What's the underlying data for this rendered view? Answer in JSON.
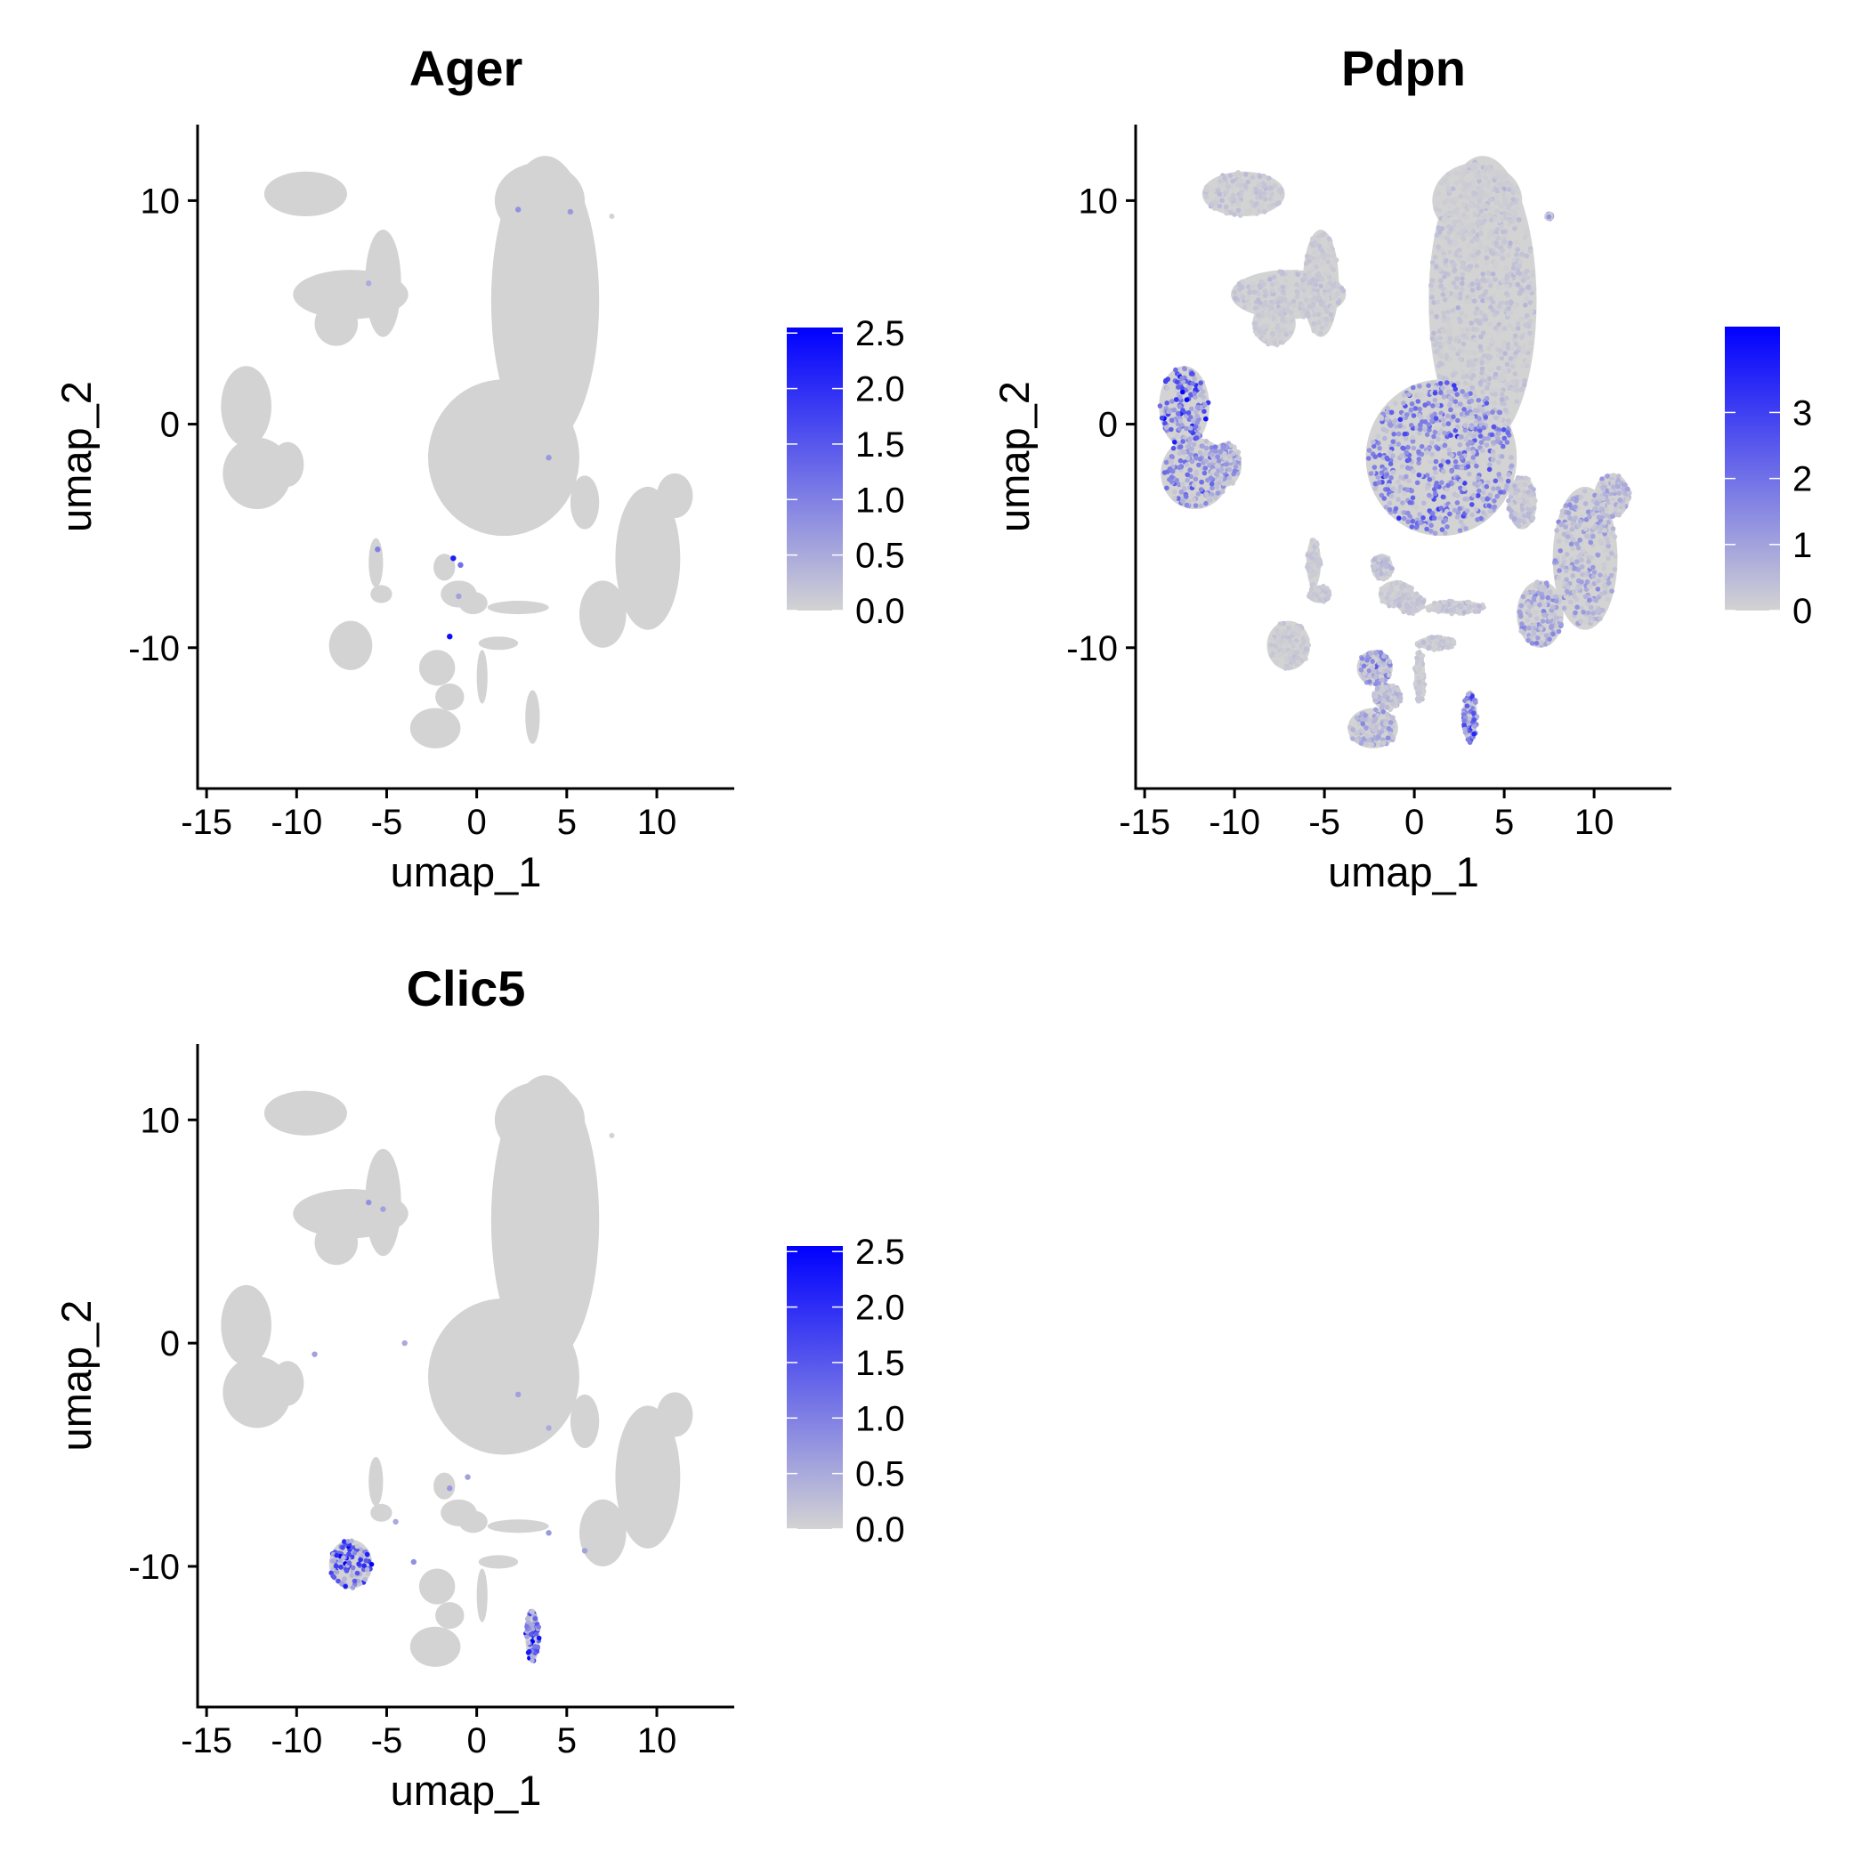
{
  "chart_data": [
    {
      "type": "scatter",
      "title": "Ager",
      "xlabel": "umap_1",
      "ylabel": "umap_2",
      "xlim": [
        -15.5,
        14.3
      ],
      "ylim": [
        -16.3,
        13.4
      ],
      "xticks": [
        -15,
        -10,
        -5,
        0,
        5,
        10
      ],
      "xtick_labels": [
        "-15",
        "-10",
        "-5",
        "0",
        "5",
        "10"
      ],
      "yticks": [
        -10,
        0,
        10
      ],
      "ytick_labels": [
        "-10",
        "0",
        "10"
      ],
      "color_scale": {
        "low": "#d3d3d3",
        "high": "#0000ff",
        "min": 0,
        "max": 2.55
      },
      "legend_ticks": [
        0,
        0.5,
        1,
        1.5,
        2,
        2.5
      ],
      "legend_tick_labels": [
        "0.0",
        "0.5",
        "1.0",
        "1.5",
        "2.0",
        "2.5"
      ],
      "legend_position": "right",
      "grid": false,
      "clusters": [
        {
          "x": 3.8,
          "y": 5.5,
          "rx": 3.0,
          "ry": 6.5
        },
        {
          "x": 1.5,
          "y": -1.5,
          "rx": 4.2,
          "ry": 3.5
        },
        {
          "x": 3.5,
          "y": 10.0,
          "rx": 2.5,
          "ry": 1.7
        },
        {
          "x": 6.0,
          "y": -3.5,
          "rx": 0.8,
          "ry": 1.2
        },
        {
          "x": -9.5,
          "y": 10.3,
          "rx": 2.3,
          "ry": 1.0
        },
        {
          "x": -7.0,
          "y": 5.8,
          "rx": 3.2,
          "ry": 1.1
        },
        {
          "x": -5.2,
          "y": 6.3,
          "rx": 1.0,
          "ry": 2.4
        },
        {
          "x": -7.8,
          "y": 4.5,
          "rx": 1.2,
          "ry": 1.0
        },
        {
          "x": -12.8,
          "y": 0.8,
          "rx": 1.4,
          "ry": 1.8
        },
        {
          "x": -12.2,
          "y": -2.2,
          "rx": 1.9,
          "ry": 1.6
        },
        {
          "x": -10.5,
          "y": -1.8,
          "rx": 0.9,
          "ry": 1.0
        },
        {
          "x": 9.5,
          "y": -6.0,
          "rx": 1.8,
          "ry": 3.2
        },
        {
          "x": 11.0,
          "y": -3.2,
          "rx": 1.0,
          "ry": 1.0
        },
        {
          "x": 7.0,
          "y": -8.5,
          "rx": 1.3,
          "ry": 1.5
        },
        {
          "x": -5.6,
          "y": -6.2,
          "rx": 0.4,
          "ry": 1.1
        },
        {
          "x": -5.3,
          "y": -7.6,
          "rx": 0.6,
          "ry": 0.4
        },
        {
          "x": -7.0,
          "y": -9.9,
          "rx": 1.2,
          "ry": 1.1
        },
        {
          "x": -1.0,
          "y": -7.6,
          "rx": 1.0,
          "ry": 0.6
        },
        {
          "x": -1.8,
          "y": -6.4,
          "rx": 0.6,
          "ry": 0.6
        },
        {
          "x": -0.2,
          "y": -8.0,
          "rx": 0.8,
          "ry": 0.5
        },
        {
          "x": -2.2,
          "y": -10.9,
          "rx": 1.0,
          "ry": 0.8
        },
        {
          "x": -1.5,
          "y": -12.2,
          "rx": 0.8,
          "ry": 0.6
        },
        {
          "x": -2.3,
          "y": -13.6,
          "rx": 1.4,
          "ry": 0.9
        },
        {
          "x": 2.3,
          "y": -8.2,
          "rx": 1.7,
          "ry": 0.3
        },
        {
          "x": 1.2,
          "y": -9.8,
          "rx": 1.1,
          "ry": 0.3
        },
        {
          "x": 0.3,
          "y": -11.3,
          "rx": 0.3,
          "ry": 1.2
        },
        {
          "x": 3.1,
          "y": -13.1,
          "rx": 0.4,
          "ry": 1.2
        },
        {
          "x": 7.5,
          "y": 9.3,
          "rx": 0.15,
          "ry": 0.12
        }
      ],
      "positive_cells": [
        {
          "x": 2.3,
          "y": 9.6,
          "v": 0.8
        },
        {
          "x": 5.2,
          "y": 9.5,
          "v": 0.7
        },
        {
          "x": 4.0,
          "y": -1.5,
          "v": 0.7
        },
        {
          "x": -1.3,
          "y": -6.0,
          "v": 2.2
        },
        {
          "x": -0.9,
          "y": -6.3,
          "v": 1.2
        },
        {
          "x": -1.5,
          "y": -9.5,
          "v": 2.4
        },
        {
          "x": -5.5,
          "y": -5.6,
          "v": 1.0
        },
        {
          "x": -1.0,
          "y": -7.7,
          "v": 0.6
        },
        {
          "x": -6.0,
          "y": 6.3,
          "v": 0.5
        }
      ]
    },
    {
      "type": "scatter",
      "title": "Pdpn",
      "xlabel": "umap_1",
      "ylabel": "umap_2",
      "xlim": [
        -15.5,
        14.3
      ],
      "ylim": [
        -16.3,
        13.4
      ],
      "xticks": [
        -15,
        -10,
        -5,
        0,
        5,
        10
      ],
      "xtick_labels": [
        "-15",
        "-10",
        "-5",
        "0",
        "5",
        "10"
      ],
      "yticks": [
        -10,
        0,
        10
      ],
      "ytick_labels": [
        "-10",
        "0",
        "10"
      ],
      "color_scale": {
        "low": "#d3d3d3",
        "high": "#0000ff",
        "min": 0,
        "max": 4.3
      },
      "legend_ticks": [
        0,
        1,
        2,
        3
      ],
      "legend_tick_labels": [
        "0",
        "1",
        "2",
        "3"
      ],
      "legend_position": "right",
      "grid": false,
      "clusters": [
        {
          "x": 3.8,
          "y": 5.5,
          "rx": 3.0,
          "ry": 6.5,
          "expr": 0.3
        },
        {
          "x": 1.5,
          "y": -1.5,
          "rx": 4.2,
          "ry": 3.5,
          "expr": 1.6
        },
        {
          "x": 3.5,
          "y": 10.0,
          "rx": 2.5,
          "ry": 1.7,
          "expr": 0.1
        },
        {
          "x": 6.0,
          "y": -3.5,
          "rx": 0.8,
          "ry": 1.2,
          "expr": 0.4
        },
        {
          "x": -9.5,
          "y": 10.3,
          "rx": 2.3,
          "ry": 1.0,
          "expr": 0.3
        },
        {
          "x": -7.0,
          "y": 5.8,
          "rx": 3.2,
          "ry": 1.1,
          "expr": 0.3
        },
        {
          "x": -5.2,
          "y": 6.3,
          "rx": 1.0,
          "ry": 2.4,
          "expr": 0.2
        },
        {
          "x": -7.8,
          "y": 4.5,
          "rx": 1.2,
          "ry": 1.0,
          "expr": 0.2
        },
        {
          "x": -12.8,
          "y": 0.8,
          "rx": 1.4,
          "ry": 1.8,
          "expr": 2.2
        },
        {
          "x": -12.2,
          "y": -2.2,
          "rx": 1.9,
          "ry": 1.6,
          "expr": 1.3
        },
        {
          "x": -10.5,
          "y": -1.8,
          "rx": 0.9,
          "ry": 1.0,
          "expr": 1.0
        },
        {
          "x": 9.5,
          "y": -6.0,
          "rx": 1.8,
          "ry": 3.2,
          "expr": 0.8
        },
        {
          "x": 11.0,
          "y": -3.2,
          "rx": 1.0,
          "ry": 1.0,
          "expr": 0.6
        },
        {
          "x": 7.0,
          "y": -8.5,
          "rx": 1.3,
          "ry": 1.5,
          "expr": 1.0
        },
        {
          "x": -5.6,
          "y": -6.2,
          "rx": 0.4,
          "ry": 1.1,
          "expr": 0.2
        },
        {
          "x": -5.3,
          "y": -7.6,
          "rx": 0.6,
          "ry": 0.4,
          "expr": 0.2
        },
        {
          "x": -7.0,
          "y": -9.9,
          "rx": 1.2,
          "ry": 1.1,
          "expr": 0.2
        },
        {
          "x": -1.0,
          "y": -7.6,
          "rx": 1.0,
          "ry": 0.6,
          "expr": 0.2
        },
        {
          "x": -1.8,
          "y": -6.4,
          "rx": 0.6,
          "ry": 0.6,
          "expr": 0.4
        },
        {
          "x": -0.2,
          "y": -8.0,
          "rx": 0.8,
          "ry": 0.5,
          "expr": 0.3
        },
        {
          "x": -2.2,
          "y": -10.9,
          "rx": 1.0,
          "ry": 0.8,
          "expr": 1.2
        },
        {
          "x": -1.5,
          "y": -12.2,
          "rx": 0.8,
          "ry": 0.6,
          "expr": 0.6
        },
        {
          "x": -2.3,
          "y": -13.6,
          "rx": 1.4,
          "ry": 0.9,
          "expr": 0.7
        },
        {
          "x": 2.3,
          "y": -8.2,
          "rx": 1.7,
          "ry": 0.3,
          "expr": 0.3
        },
        {
          "x": 1.2,
          "y": -9.8,
          "rx": 1.1,
          "ry": 0.3,
          "expr": 0.3
        },
        {
          "x": 0.3,
          "y": -11.3,
          "rx": 0.3,
          "ry": 1.2,
          "expr": 0.2
        },
        {
          "x": 3.1,
          "y": -13.1,
          "rx": 0.4,
          "ry": 1.2,
          "expr": 1.8
        },
        {
          "x": 7.5,
          "y": 9.3,
          "rx": 0.15,
          "ry": 0.12,
          "expr": 1.0
        }
      ]
    },
    {
      "type": "scatter",
      "title": "Clic5",
      "xlabel": "umap_1",
      "ylabel": "umap_2",
      "xlim": [
        -15.5,
        14.3
      ],
      "ylim": [
        -16.3,
        13.4
      ],
      "xticks": [
        -15,
        -10,
        -5,
        0,
        5,
        10
      ],
      "xtick_labels": [
        "-15",
        "-10",
        "-5",
        "0",
        "5",
        "10"
      ],
      "yticks": [
        -10,
        0,
        10
      ],
      "ytick_labels": [
        "-10",
        "0",
        "10"
      ],
      "color_scale": {
        "low": "#d3d3d3",
        "high": "#0000ff",
        "min": 0,
        "max": 2.55
      },
      "legend_ticks": [
        0,
        0.5,
        1,
        1.5,
        2,
        2.5
      ],
      "legend_tick_labels": [
        "0.0",
        "0.5",
        "1.0",
        "1.5",
        "2.0",
        "2.5"
      ],
      "legend_position": "right",
      "grid": false,
      "clusters": [
        {
          "x": 3.8,
          "y": 5.5,
          "rx": 3.0,
          "ry": 6.5
        },
        {
          "x": 1.5,
          "y": -1.5,
          "rx": 4.2,
          "ry": 3.5
        },
        {
          "x": 3.5,
          "y": 10.0,
          "rx": 2.5,
          "ry": 1.7
        },
        {
          "x": 6.0,
          "y": -3.5,
          "rx": 0.8,
          "ry": 1.2
        },
        {
          "x": -9.5,
          "y": 10.3,
          "rx": 2.3,
          "ry": 1.0
        },
        {
          "x": -7.0,
          "y": 5.8,
          "rx": 3.2,
          "ry": 1.1
        },
        {
          "x": -5.2,
          "y": 6.3,
          "rx": 1.0,
          "ry": 2.4
        },
        {
          "x": -7.8,
          "y": 4.5,
          "rx": 1.2,
          "ry": 1.0
        },
        {
          "x": -12.8,
          "y": 0.8,
          "rx": 1.4,
          "ry": 1.8
        },
        {
          "x": -12.2,
          "y": -2.2,
          "rx": 1.9,
          "ry": 1.6
        },
        {
          "x": -10.5,
          "y": -1.8,
          "rx": 0.9,
          "ry": 1.0
        },
        {
          "x": 9.5,
          "y": -6.0,
          "rx": 1.8,
          "ry": 3.2
        },
        {
          "x": 11.0,
          "y": -3.2,
          "rx": 1.0,
          "ry": 1.0
        },
        {
          "x": 7.0,
          "y": -8.5,
          "rx": 1.3,
          "ry": 1.5
        },
        {
          "x": -5.6,
          "y": -6.2,
          "rx": 0.4,
          "ry": 1.1
        },
        {
          "x": -5.3,
          "y": -7.6,
          "rx": 0.6,
          "ry": 0.4
        },
        {
          "x": -7.0,
          "y": -9.9,
          "rx": 1.2,
          "ry": 1.1
        },
        {
          "x": -1.0,
          "y": -7.6,
          "rx": 1.0,
          "ry": 0.6
        },
        {
          "x": -1.8,
          "y": -6.4,
          "rx": 0.6,
          "ry": 0.6
        },
        {
          "x": -0.2,
          "y": -8.0,
          "rx": 0.8,
          "ry": 0.5
        },
        {
          "x": -2.2,
          "y": -10.9,
          "rx": 1.0,
          "ry": 0.8
        },
        {
          "x": -1.5,
          "y": -12.2,
          "rx": 0.8,
          "ry": 0.6
        },
        {
          "x": -2.3,
          "y": -13.6,
          "rx": 1.4,
          "ry": 0.9
        },
        {
          "x": 2.3,
          "y": -8.2,
          "rx": 1.7,
          "ry": 0.3
        },
        {
          "x": 1.2,
          "y": -9.8,
          "rx": 1.1,
          "ry": 0.3
        },
        {
          "x": 0.3,
          "y": -11.3,
          "rx": 0.3,
          "ry": 1.2
        },
        {
          "x": 3.1,
          "y": -13.1,
          "rx": 0.4,
          "ry": 1.2
        },
        {
          "x": 7.5,
          "y": 9.3,
          "rx": 0.15,
          "ry": 0.12
        }
      ],
      "expressing_clusters": [
        {
          "x": -7.0,
          "y": -9.9,
          "rx": 1.2,
          "ry": 1.1,
          "expr": 1.4
        },
        {
          "x": 3.1,
          "y": -13.1,
          "rx": 0.4,
          "ry": 1.2,
          "expr": 1.5
        }
      ],
      "positive_cells": [
        {
          "x": -6.0,
          "y": 6.3,
          "v": 0.8
        },
        {
          "x": -5.2,
          "y": 6.0,
          "v": 0.6
        },
        {
          "x": -4.0,
          "y": 0.0,
          "v": 0.5
        },
        {
          "x": -9.0,
          "y": -0.5,
          "v": 0.6
        },
        {
          "x": 2.3,
          "y": -2.3,
          "v": 0.6
        },
        {
          "x": 4.0,
          "y": -3.8,
          "v": 0.5
        },
        {
          "x": -1.5,
          "y": -6.5,
          "v": 0.7
        },
        {
          "x": -3.5,
          "y": -9.8,
          "v": 0.8
        },
        {
          "x": -4.5,
          "y": -8.0,
          "v": 0.5
        },
        {
          "x": 4.0,
          "y": -8.5,
          "v": 0.7
        },
        {
          "x": 6.0,
          "y": -9.3,
          "v": 0.6
        },
        {
          "x": -0.5,
          "y": -6.0,
          "v": 0.6
        }
      ]
    }
  ]
}
